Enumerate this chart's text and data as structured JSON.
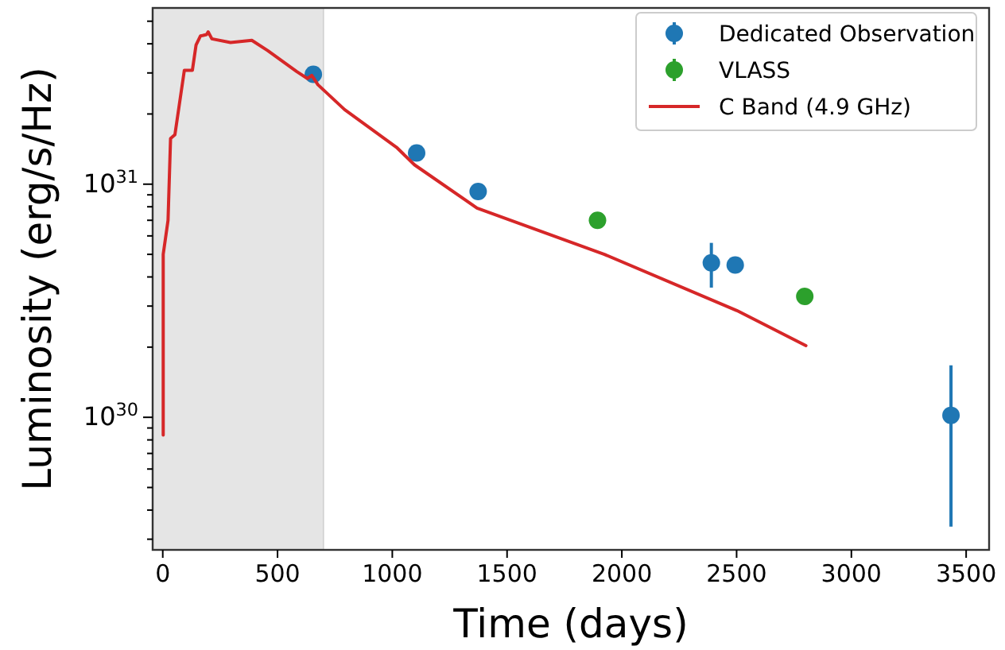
{
  "chart_data": {
    "type": "scatter",
    "xlabel": "Time (days)",
    "ylabel": "Luminosity (erg/s/Hz)",
    "xlim": [
      -44,
      3600
    ],
    "xticks": [
      0,
      500,
      1000,
      1500,
      2000,
      2500,
      3000,
      3500
    ],
    "ylim": [
      2.7e+29,
      5.7e+31
    ],
    "log": "y",
    "yticks": [
      {
        "value": 3e+29,
        "label": null
      },
      {
        "value": 4e+29,
        "label": null
      },
      {
        "value": 5e+29,
        "label": null
      },
      {
        "value": 6e+29,
        "label": null
      },
      {
        "value": 7e+29,
        "label": null
      },
      {
        "value": 8e+29,
        "label": null
      },
      {
        "value": 9e+29,
        "label": null
      },
      {
        "value": 1e+30,
        "label": "10$^{30}$"
      },
      {
        "value": 2e+30,
        "label": null
      },
      {
        "value": 3e+30,
        "label": null
      },
      {
        "value": 4e+30,
        "label": null
      },
      {
        "value": 5e+30,
        "label": null
      },
      {
        "value": 6e+30,
        "label": null
      },
      {
        "value": 7e+30,
        "label": null
      },
      {
        "value": 8e+30,
        "label": null
      },
      {
        "value": 9e+30,
        "label": null
      },
      {
        "value": 1e+31,
        "label": "10$^{31}$"
      },
      {
        "value": 2e+31,
        "label": null
      },
      {
        "value": 3e+31,
        "label": null
      },
      {
        "value": 4e+31,
        "label": null
      },
      {
        "value": 5e+31,
        "label": null
      }
    ],
    "bands": [
      {
        "axis": "x",
        "from": -44,
        "to": 700,
        "color": "#e5e5e5"
      }
    ],
    "legend": "top right",
    "grid": false,
    "series": [
      {
        "name": "Dedicated Observation",
        "color": "#1f77b4",
        "marker": "circle",
        "x": [
          656,
          1106,
          1374,
          2390,
          2494,
          3434
        ],
        "values": [
          2.96e+31,
          1.36e+31,
          9.3e+30,
          4.6e+30,
          4.5e+30,
          1.02e+30
        ],
        "errors": [
          null,
          null,
          null,
          [
            3.6e+30,
            5.6e+30
          ],
          null,
          [
            3.4e+29,
            1.67e+30
          ]
        ]
      },
      {
        "name": "VLASS",
        "color": "#2ca02c",
        "marker": "circle",
        "x": [
          1894,
          2797
        ],
        "values": [
          7e+30,
          3.3e+30
        ]
      },
      {
        "name": "C Band (4.9 GHz)",
        "type": "line",
        "color": "#d62728",
        "marker": "none",
        "line_style": "solid",
        "x": [
          2,
          2,
          23,
          34,
          53,
          94,
          129,
          145,
          164,
          191,
          198,
          214,
          295,
          388,
          457,
          584,
          630,
          649,
          676,
          792,
          1018,
          1097,
          1369,
          1924,
          2501,
          2802
        ],
        "values": [
          8.4e+29,
          5e+30,
          7e+30,
          1.57e+31,
          1.63e+31,
          3.08e+31,
          3.08e+31,
          3.95e+31,
          4.32e+31,
          4.38e+31,
          4.5e+31,
          4.2e+31,
          4.05e+31,
          4.14e+31,
          3.74e+31,
          3.04e+31,
          2.84e+31,
          2.93e+31,
          2.67e+31,
          2.09e+31,
          1.44e+31,
          1.21e+31,
          7.9e+30,
          5e+30,
          2.87e+30,
          2.03e+30
        ]
      }
    ]
  }
}
